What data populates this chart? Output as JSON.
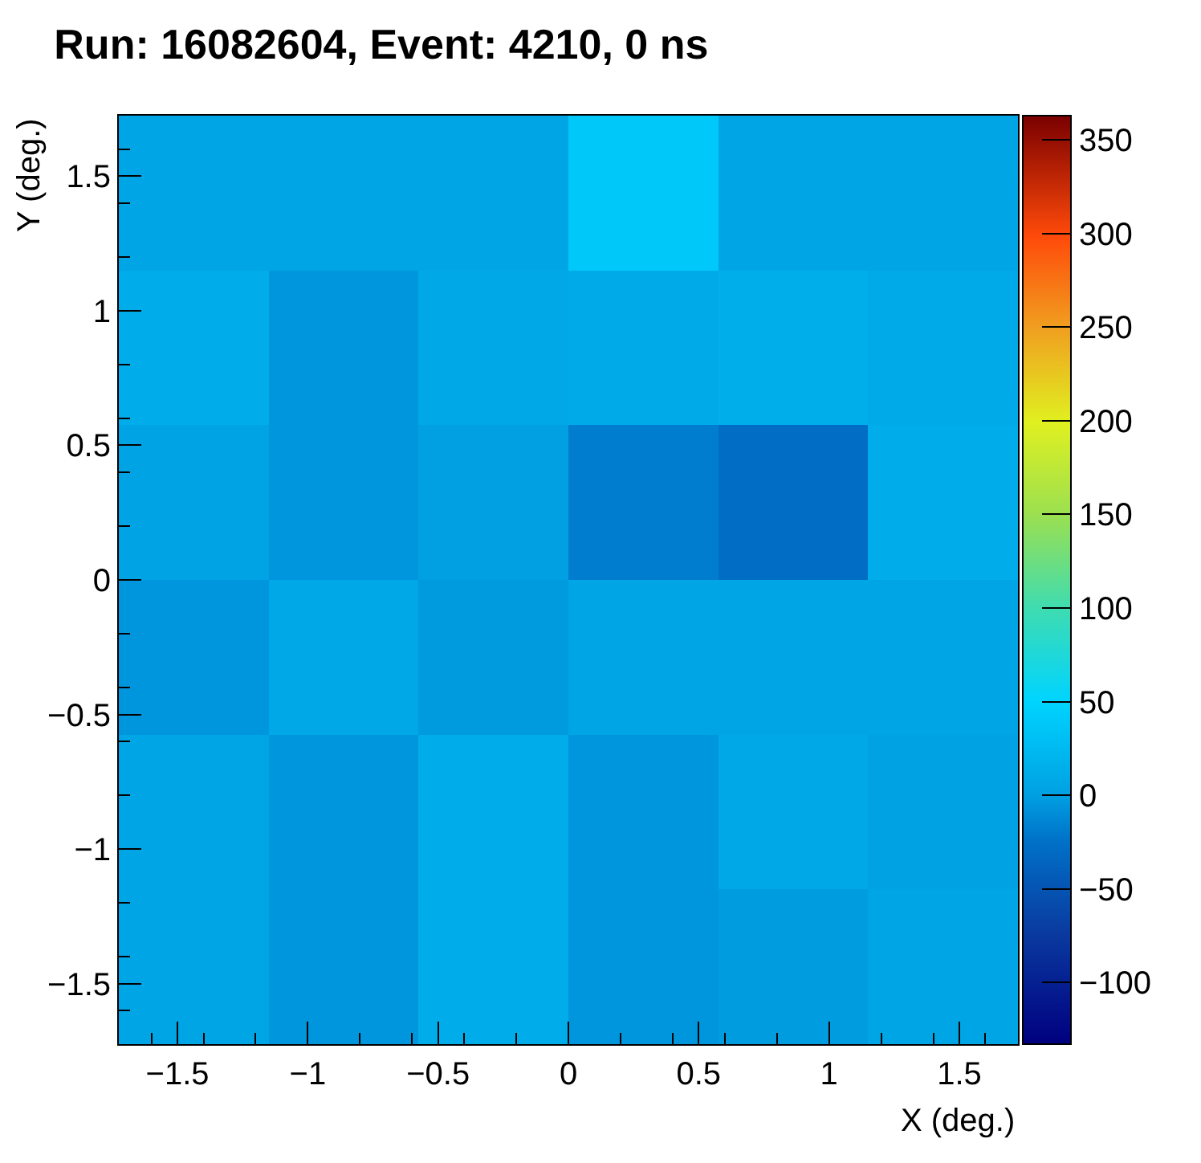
{
  "chart_data": {
    "type": "heatmap",
    "title": "Run: 16082604, Event: 4210, 0 ns",
    "xlabel": "X (deg.)",
    "ylabel": "Y (deg.)",
    "x": [
      -1.4375,
      -0.8625,
      -0.2875,
      0.2875,
      0.8625,
      1.4375
    ],
    "y": [
      1.4375,
      0.8625,
      0.2875,
      -0.2875,
      -0.8625,
      -1.4375
    ],
    "cells": [
      [
        5,
        5,
        5,
        40,
        5,
        5
      ],
      [
        12,
        -5,
        8,
        10,
        14,
        10
      ],
      [
        3,
        -5,
        0,
        -18,
        -28,
        12
      ],
      [
        -5,
        8,
        -3,
        5,
        5,
        5
      ],
      [
        5,
        -5,
        12,
        -5,
        8,
        2
      ],
      [
        5,
        -5,
        12,
        -5,
        -2,
        5
      ]
    ],
    "xlim": [
      -1.725,
      1.725
    ],
    "ylim": [
      -1.725,
      1.725
    ],
    "xticks": [
      -1.5,
      -1,
      -0.5,
      0,
      0.5,
      1,
      1.5
    ],
    "yticks": [
      -1.5,
      -1,
      -0.5,
      0,
      0.5,
      1,
      1.5
    ],
    "clim": [
      -133,
      363
    ],
    "cticks": [
      -100,
      -50,
      0,
      50,
      100,
      150,
      200,
      250,
      300,
      350
    ]
  }
}
